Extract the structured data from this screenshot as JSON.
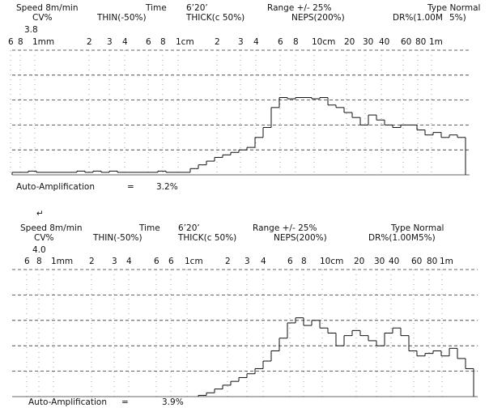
{
  "chart_data": [
    {
      "type": "step",
      "speed": "Speed  8m/min",
      "time_label": "Time",
      "time": "6’20’",
      "range": "Range  +/-  25%",
      "type_label": "Type Normal",
      "cv": "CV%",
      "thin": "THIN(-50%)",
      "thick": "THICK(c 50%)",
      "neps": "NEPS(200%)",
      "dr": "DR%(1.00M",
      "dr_pct": "5%)",
      "cv_value": "3.8",
      "xtick_labels": [
        "6",
        "8",
        "1mm",
        "2",
        "3",
        "4",
        "6",
        "8",
        "1cm",
        "2",
        "3",
        "4",
        "6",
        "8",
        "10cm",
        "20",
        "30",
        "40",
        "60",
        "80",
        "1m"
      ],
      "amplification_label": "Auto-Amplification",
      "equals": "=",
      "amplification": "3.2%",
      "ylim": [
        0,
        5
      ],
      "yticks": [
        0,
        1,
        2,
        3,
        4,
        5
      ],
      "values": [
        0.1,
        0.1,
        0.15,
        0.1,
        0.1,
        0.1,
        0.1,
        0.1,
        0.15,
        0.1,
        0.15,
        0.1,
        0.15,
        0.1,
        0.1,
        0.1,
        0.1,
        0.1,
        0.15,
        0.1,
        0.1,
        0.1,
        0.25,
        0.4,
        0.55,
        0.7,
        0.8,
        0.9,
        1.0,
        1.1,
        1.5,
        1.9,
        2.7,
        3.1,
        3.05,
        3.1,
        3.1,
        3.05,
        3.1,
        2.8,
        2.7,
        2.5,
        2.3,
        2.0,
        2.4,
        2.2,
        2.0,
        1.9,
        2.0,
        2.0,
        1.8,
        1.6,
        1.7,
        1.5,
        1.6,
        1.5
      ]
    },
    {
      "type": "step",
      "mark": "↵",
      "speed": "Speed  8m/min",
      "time_label": "Time",
      "time": "6’20’",
      "range": "Range  +/-  25%",
      "type_label": "Type Normal",
      "cv": "CV%",
      "thin": "THIN(-50%)",
      "thick": "THICK(c 50%)",
      "neps": "NEPS(200%)",
      "dr": "DR%(1.00M",
      "dr_pct": "5%)",
      "cv_value": "4.0",
      "xtick_labels": [
        "6",
        "8",
        "1mm",
        "2",
        "3",
        "4",
        "6",
        "6",
        "1cm",
        "2",
        "3",
        "4",
        "6",
        "8",
        "10cm",
        "20",
        "30",
        "40",
        "60",
        "80",
        "1m"
      ],
      "amplification_label": "Auto-Amplification",
      "equals": "=",
      "amplification": "3.9%",
      "ylim": [
        0,
        5
      ],
      "yticks": [
        0,
        1,
        2,
        3,
        4,
        5
      ],
      "values": [
        null,
        null,
        null,
        null,
        null,
        null,
        null,
        null,
        null,
        null,
        null,
        null,
        null,
        null,
        null,
        null,
        null,
        null,
        null,
        null,
        null,
        null,
        null,
        0.05,
        0.15,
        0.3,
        0.45,
        0.6,
        0.75,
        0.9,
        1.1,
        1.4,
        1.8,
        2.3,
        2.9,
        3.1,
        2.8,
        3.0,
        2.7,
        2.5,
        2.0,
        2.4,
        2.6,
        2.4,
        2.2,
        2.0,
        2.5,
        2.7,
        2.4,
        1.8,
        1.6,
        1.7,
        1.8,
        1.6,
        1.9,
        1.5,
        1.1
      ]
    }
  ]
}
